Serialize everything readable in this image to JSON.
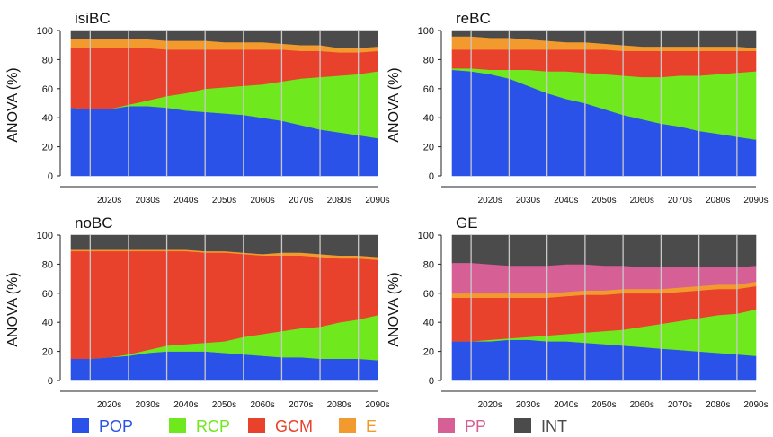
{
  "colors": {
    "POP": "#2a52e8",
    "RCP": "#6fe81e",
    "GCM": "#e8412c",
    "E": "#f29a2e",
    "PP": "#d65f95",
    "INT": "#4b4b4b"
  },
  "legend": [
    {
      "key": "POP",
      "label": "POP",
      "color": "#2a52e8"
    },
    {
      "key": "RCP",
      "label": "RCP",
      "color": "#6fe81e"
    },
    {
      "key": "GCM",
      "label": "GCM",
      "color": "#e8412c"
    },
    {
      "key": "E",
      "label": "E",
      "color": "#f29a2e"
    },
    {
      "key": "PP",
      "label": "PP",
      "color": "#d65f95"
    },
    {
      "key": "INT",
      "label": "INT",
      "color": "#4b4b4b"
    }
  ],
  "chart_data": [
    {
      "type": "area",
      "stacked": true,
      "title": "isiBC",
      "ylabel": "ANOVA (%)",
      "ylim": [
        0,
        100
      ],
      "yticks": [
        0,
        20,
        40,
        60,
        80,
        100
      ],
      "categories": [
        "2020s",
        "2030s",
        "2040s",
        "2050s",
        "2060s",
        "2070s",
        "2080s",
        "2090s"
      ],
      "x": [
        2015,
        2020,
        2025,
        2030,
        2035,
        2040,
        2045,
        2050,
        2055,
        2060,
        2065,
        2070,
        2075,
        2080,
        2085,
        2090,
        2095
      ],
      "series": [
        {
          "name": "POP",
          "values": [
            47,
            46,
            46,
            48,
            48,
            47,
            45,
            44,
            43,
            42,
            40,
            38,
            35,
            32,
            30,
            28,
            26
          ]
        },
        {
          "name": "RCP",
          "values": [
            0,
            0,
            0,
            1,
            4,
            8,
            12,
            16,
            18,
            20,
            23,
            27,
            32,
            36,
            39,
            42,
            46
          ]
        },
        {
          "name": "GCM",
          "values": [
            41,
            42,
            42,
            39,
            36,
            32,
            30,
            27,
            26,
            25,
            24,
            22,
            19,
            18,
            16,
            15,
            14
          ]
        },
        {
          "name": "E",
          "values": [
            6,
            6,
            6,
            6,
            6,
            6,
            6,
            6,
            5,
            5,
            5,
            4,
            4,
            4,
            3,
            3,
            3
          ]
        },
        {
          "name": "INT",
          "values": [
            6,
            6,
            6,
            6,
            6,
            7,
            7,
            7,
            8,
            8,
            8,
            9,
            10,
            10,
            12,
            12,
            11
          ]
        }
      ]
    },
    {
      "type": "area",
      "stacked": true,
      "title": "reBC",
      "ylabel": "ANOVA (%)",
      "ylim": [
        0,
        100
      ],
      "yticks": [
        0,
        20,
        40,
        60,
        80,
        100
      ],
      "categories": [
        "2020s",
        "2030s",
        "2040s",
        "2050s",
        "2060s",
        "2070s",
        "2080s",
        "2090s"
      ],
      "x": [
        2015,
        2020,
        2025,
        2030,
        2035,
        2040,
        2045,
        2050,
        2055,
        2060,
        2065,
        2070,
        2075,
        2080,
        2085,
        2090,
        2095
      ],
      "series": [
        {
          "name": "POP",
          "values": [
            73,
            72,
            70,
            67,
            62,
            57,
            53,
            50,
            46,
            42,
            39,
            36,
            34,
            31,
            29,
            27,
            25
          ]
        },
        {
          "name": "RCP",
          "values": [
            1,
            2,
            3,
            6,
            11,
            15,
            19,
            21,
            24,
            27,
            29,
            32,
            35,
            38,
            41,
            44,
            47
          ]
        },
        {
          "name": "GCM",
          "values": [
            13,
            13,
            14,
            14,
            14,
            15,
            15,
            16,
            17,
            17,
            18,
            18,
            17,
            17,
            16,
            15,
            14
          ]
        },
        {
          "name": "E",
          "values": [
            9,
            9,
            8,
            8,
            7,
            6,
            5,
            5,
            4,
            4,
            3,
            3,
            3,
            3,
            3,
            3,
            2
          ]
        },
        {
          "name": "INT",
          "values": [
            4,
            4,
            5,
            5,
            6,
            7,
            8,
            8,
            9,
            10,
            11,
            11,
            11,
            11,
            11,
            11,
            12
          ]
        }
      ]
    },
    {
      "type": "area",
      "stacked": true,
      "title": "noBC",
      "ylabel": "ANOVA (%)",
      "ylim": [
        0,
        100
      ],
      "yticks": [
        0,
        20,
        40,
        60,
        80,
        100
      ],
      "categories": [
        "2020s",
        "2030s",
        "2040s",
        "2050s",
        "2060s",
        "2070s",
        "2080s",
        "2090s"
      ],
      "x": [
        2015,
        2020,
        2025,
        2030,
        2035,
        2040,
        2045,
        2050,
        2055,
        2060,
        2065,
        2070,
        2075,
        2080,
        2085,
        2090,
        2095
      ],
      "series": [
        {
          "name": "POP",
          "values": [
            15,
            15,
            16,
            17,
            19,
            20,
            20,
            20,
            19,
            18,
            17,
            16,
            16,
            15,
            15,
            15,
            14
          ]
        },
        {
          "name": "RCP",
          "values": [
            0,
            0,
            0,
            1,
            2,
            4,
            5,
            6,
            8,
            12,
            15,
            18,
            20,
            22,
            25,
            27,
            31
          ]
        },
        {
          "name": "GCM",
          "values": [
            74,
            74,
            73,
            71,
            68,
            65,
            64,
            62,
            61,
            57,
            54,
            52,
            50,
            48,
            44,
            42,
            38
          ]
        },
        {
          "name": "E",
          "values": [
            1,
            1,
            1,
            1,
            1,
            1,
            1,
            1,
            1,
            1,
            1,
            2,
            2,
            2,
            2,
            2,
            2
          ]
        },
        {
          "name": "INT",
          "values": [
            10,
            10,
            10,
            10,
            10,
            10,
            10,
            11,
            11,
            12,
            13,
            12,
            12,
            13,
            14,
            14,
            15
          ]
        }
      ]
    },
    {
      "type": "area",
      "stacked": true,
      "title": "GE",
      "ylabel": "ANOVA (%)",
      "ylim": [
        0,
        100
      ],
      "yticks": [
        0,
        20,
        40,
        60,
        80,
        100
      ],
      "categories": [
        "2020s",
        "2030s",
        "2040s",
        "2050s",
        "2060s",
        "2070s",
        "2080s",
        "2090s"
      ],
      "x": [
        2015,
        2020,
        2025,
        2030,
        2035,
        2040,
        2045,
        2050,
        2055,
        2060,
        2065,
        2070,
        2075,
        2080,
        2085,
        2090,
        2095
      ],
      "series": [
        {
          "name": "POP",
          "values": [
            27,
            27,
            27,
            28,
            28,
            27,
            27,
            26,
            25,
            24,
            23,
            22,
            21,
            20,
            19,
            18,
            17
          ]
        },
        {
          "name": "RCP",
          "values": [
            0,
            0,
            1,
            1,
            2,
            4,
            5,
            7,
            9,
            11,
            14,
            17,
            20,
            23,
            26,
            28,
            32
          ]
        },
        {
          "name": "GCM",
          "values": [
            30,
            30,
            29,
            28,
            27,
            26,
            26,
            26,
            25,
            25,
            23,
            21,
            20,
            19,
            18,
            17,
            16
          ]
        },
        {
          "name": "E",
          "values": [
            3,
            3,
            3,
            3,
            3,
            3,
            3,
            3,
            3,
            3,
            3,
            3,
            3,
            3,
            3,
            3,
            3
          ]
        },
        {
          "name": "PP",
          "values": [
            21,
            21,
            20,
            19,
            19,
            19,
            19,
            18,
            17,
            16,
            15,
            15,
            14,
            13,
            12,
            12,
            11
          ]
        },
        {
          "name": "INT",
          "values": [
            19,
            19,
            20,
            21,
            21,
            21,
            20,
            20,
            21,
            21,
            22,
            22,
            22,
            22,
            22,
            22,
            21
          ]
        }
      ]
    }
  ]
}
